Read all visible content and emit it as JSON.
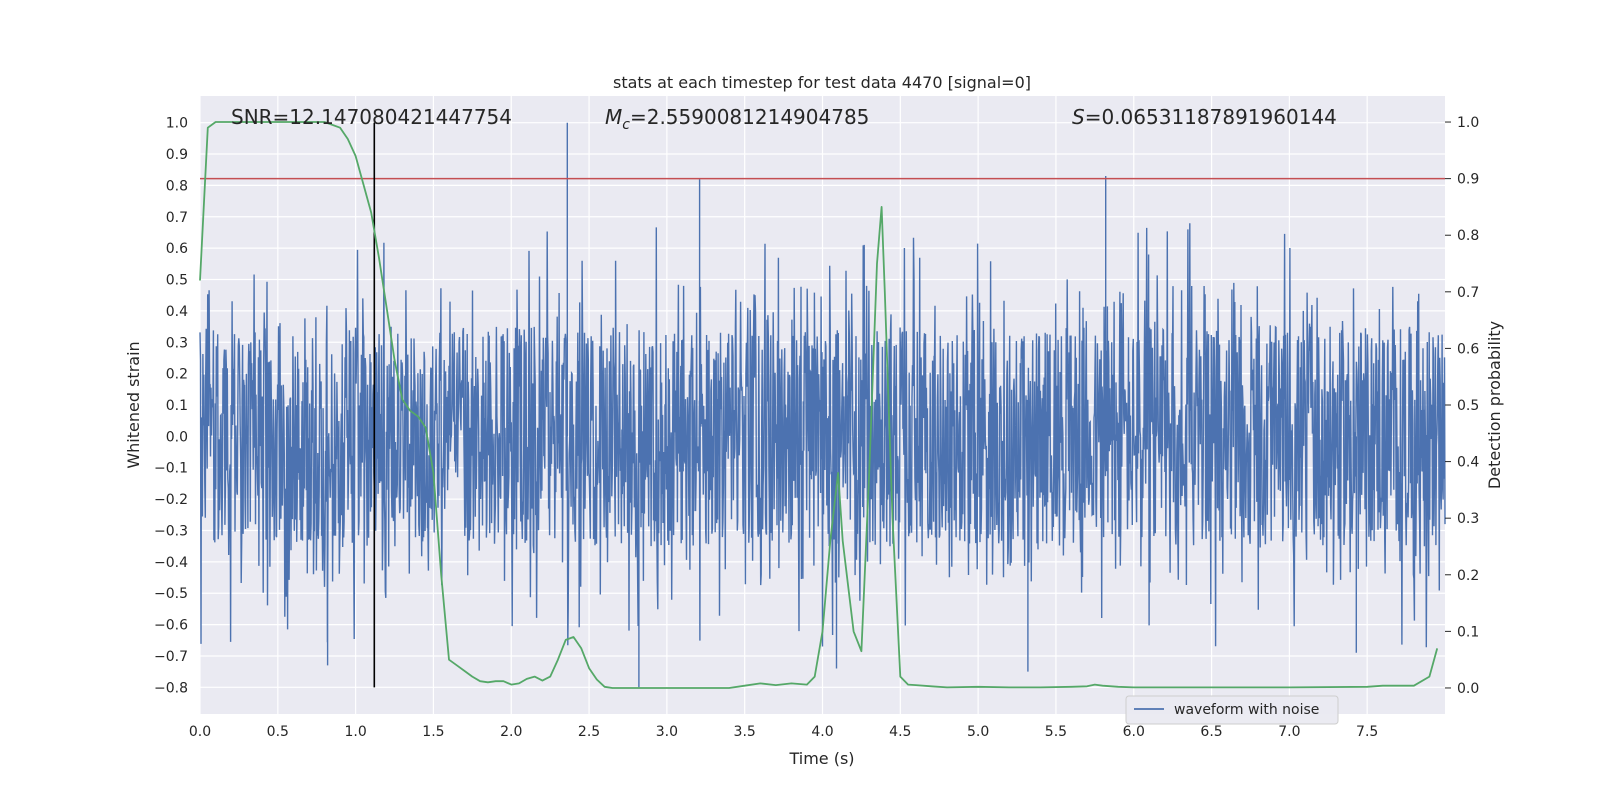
{
  "chart_data": {
    "type": "line",
    "title": "stats at each timestep for test data 4470 [signal=0]",
    "xlabel": "Time (s)",
    "ylabel_left": "Whitened strain",
    "ylabel_right": "Detection probability",
    "xlim": [
      0.0,
      8.0
    ],
    "ylim_left": [
      -0.885,
      1.085
    ],
    "ylim_right": [
      -0.046,
      1.046
    ],
    "x_ticks": [
      "0.0",
      "0.5",
      "1.0",
      "1.5",
      "2.0",
      "2.5",
      "3.0",
      "3.5",
      "4.0",
      "4.5",
      "5.0",
      "5.5",
      "6.0",
      "6.5",
      "7.0",
      "7.5"
    ],
    "y_left_ticks": [
      "−0.8",
      "−0.7",
      "−0.6",
      "−0.5",
      "−0.4",
      "−0.3",
      "−0.2",
      "−0.1",
      "0.0",
      "0.1",
      "0.2",
      "0.3",
      "0.4",
      "0.5",
      "0.6",
      "0.7",
      "0.8",
      "0.9",
      "1.0"
    ],
    "y_right_ticks": [
      "0.0",
      "0.1",
      "0.2",
      "0.3",
      "0.4",
      "0.5",
      "0.6",
      "0.7",
      "0.8",
      "0.9",
      "1.0"
    ],
    "grid": true,
    "legend_position": "lower-right",
    "annotations": {
      "snr": "SNR=12.147080421447754",
      "mc_symbol": "M",
      "mc_sub": "c",
      "mc_value": "=2.5590081214904785",
      "s_symbol": "S",
      "s_value": "=0.06531187891960144"
    },
    "threshold_right": 0.9,
    "vertical_marker_x": 1.12,
    "series": [
      {
        "name": "waveform with noise",
        "axis": "left",
        "color": "#4c72b0",
        "envelope": "dense noise with peaks",
        "peaks": [
          {
            "x": 2.36,
            "y": 1.0
          },
          {
            "x": 3.21,
            "y": 0.82
          },
          {
            "x": 5.82,
            "y": 0.83
          },
          {
            "x": 2.82,
            "y": -0.8
          },
          {
            "x": 0.82,
            "y": -0.73
          },
          {
            "x": 5.32,
            "y": -0.75
          },
          {
            "x": 4.09,
            "y": -0.74
          },
          {
            "x": 7.43,
            "y": -0.69
          }
        ]
      },
      {
        "axis": "right",
        "color": "#55a868",
        "x": [
          0.0,
          0.05,
          0.1,
          0.2,
          0.3,
          0.4,
          0.5,
          0.6,
          0.7,
          0.8,
          0.9,
          0.95,
          1.0,
          1.05,
          1.1,
          1.15,
          1.2,
          1.25,
          1.3,
          1.35,
          1.4,
          1.45,
          1.5,
          1.55,
          1.6,
          1.65,
          1.7,
          1.75,
          1.8,
          1.85,
          1.9,
          1.95,
          2.0,
          2.05,
          2.1,
          2.15,
          2.2,
          2.25,
          2.3,
          2.35,
          2.4,
          2.45,
          2.5,
          2.55,
          2.6,
          2.65,
          2.7,
          2.75,
          2.8,
          2.9,
          3.0,
          3.2,
          3.4,
          3.5,
          3.6,
          3.7,
          3.8,
          3.9,
          3.95,
          4.0,
          4.05,
          4.1,
          4.13,
          4.2,
          4.25,
          4.3,
          4.35,
          4.38,
          4.4,
          4.45,
          4.5,
          4.55,
          4.6,
          4.7,
          4.8,
          5.0,
          5.2,
          5.4,
          5.6,
          5.7,
          5.75,
          5.8,
          5.9,
          6.0,
          6.5,
          7.0,
          7.5,
          7.6,
          7.8,
          7.9,
          7.95
        ],
        "y": [
          0.72,
          0.99,
          1.0,
          1.0,
          1.0,
          1.0,
          1.0,
          1.0,
          1.0,
          1.0,
          0.99,
          0.97,
          0.94,
          0.89,
          0.84,
          0.76,
          0.67,
          0.58,
          0.51,
          0.49,
          0.48,
          0.46,
          0.38,
          0.2,
          0.05,
          0.04,
          0.03,
          0.02,
          0.012,
          0.01,
          0.012,
          0.012,
          0.006,
          0.008,
          0.016,
          0.02,
          0.013,
          0.02,
          0.05,
          0.085,
          0.09,
          0.07,
          0.035,
          0.015,
          0.002,
          0.0,
          0.0,
          0.0,
          0.0,
          0.0,
          0.0,
          0.0,
          0.0,
          0.004,
          0.008,
          0.005,
          0.008,
          0.006,
          0.02,
          0.1,
          0.26,
          0.38,
          0.26,
          0.1,
          0.065,
          0.38,
          0.75,
          0.85,
          0.7,
          0.3,
          0.02,
          0.006,
          0.005,
          0.003,
          0.001,
          0.002,
          0.001,
          0.001,
          0.002,
          0.003,
          0.006,
          0.004,
          0.002,
          0.001,
          0.001,
          0.001,
          0.002,
          0.004,
          0.004,
          0.02,
          0.07
        ]
      }
    ]
  }
}
